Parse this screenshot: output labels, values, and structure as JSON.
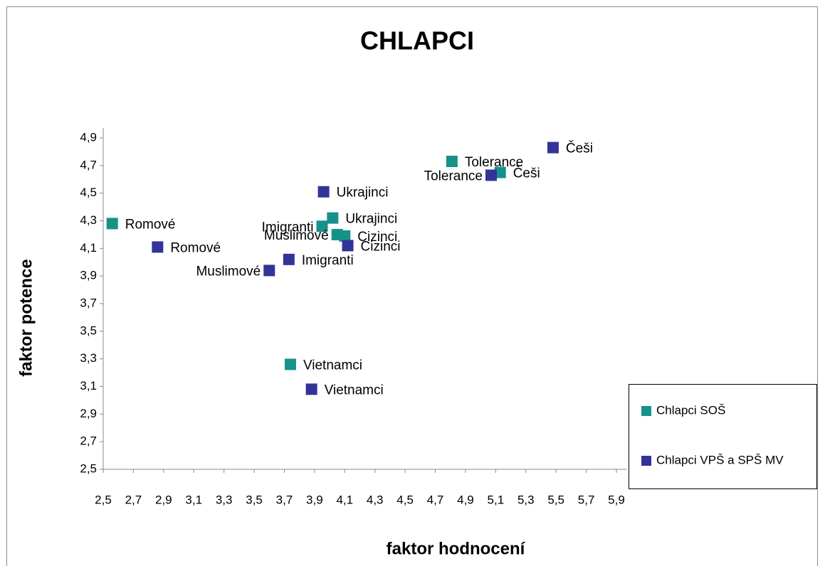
{
  "chart_data": {
    "type": "scatter",
    "title": "CHLAPCI",
    "x_label": "faktor hodnocení",
    "y_label": "faktor potence",
    "xlim": [
      2.5,
      5.9
    ],
    "xticks": [
      {
        "value": 2.5,
        "label": "2,5"
      },
      {
        "value": 2.7,
        "label": "2,7"
      },
      {
        "value": 2.9,
        "label": "2,9"
      },
      {
        "value": 3.1,
        "label": "3,1"
      },
      {
        "value": 3.3,
        "label": "3,3"
      },
      {
        "value": 3.5,
        "label": "3,5"
      },
      {
        "value": 3.7,
        "label": "3,7"
      },
      {
        "value": 3.9,
        "label": "3,9"
      },
      {
        "value": 4.1,
        "label": "4,1"
      },
      {
        "value": 4.3,
        "label": "4,3"
      },
      {
        "value": 4.5,
        "label": "4,5"
      },
      {
        "value": 4.7,
        "label": "4,7"
      },
      {
        "value": 4.9,
        "label": "4,9"
      },
      {
        "value": 5.1,
        "label": "5,1"
      },
      {
        "value": 5.3,
        "label": "5,3"
      },
      {
        "value": 5.5,
        "label": "5,5"
      },
      {
        "value": 5.7,
        "label": "5,7"
      },
      {
        "value": 5.9,
        "label": "5,9"
      }
    ],
    "ylim": [
      2.5,
      4.9
    ],
    "yticks": [
      {
        "value": 2.5,
        "label": "2,5"
      },
      {
        "value": 2.7,
        "label": "2,7"
      },
      {
        "value": 2.9,
        "label": "2,9"
      },
      {
        "value": 3.1,
        "label": "3,1"
      },
      {
        "value": 3.3,
        "label": "3,3"
      },
      {
        "value": 3.5,
        "label": "3,5"
      },
      {
        "value": 3.7,
        "label": "3,7"
      },
      {
        "value": 3.9,
        "label": "3,9"
      },
      {
        "value": 4.1,
        "label": "4,1"
      },
      {
        "value": 4.3,
        "label": "4,3"
      },
      {
        "value": 4.5,
        "label": "4,5"
      },
      {
        "value": 4.7,
        "label": "4,7"
      },
      {
        "value": 4.9,
        "label": "4,9"
      }
    ],
    "grid": false,
    "legend": "right",
    "series": [
      {
        "name": "Chlapci SOŠ",
        "color": "#17918a",
        "labels": [
          "Romové",
          "Tolerance",
          "Češi",
          "Ukrajinci",
          "Imigranti",
          "Muslimové",
          "Cizinci",
          "Vietnamci"
        ],
        "x": [
          2.56,
          4.81,
          5.13,
          4.02,
          3.95,
          4.05,
          4.1,
          3.74
        ],
        "values": [
          4.28,
          4.73,
          4.65,
          4.32,
          4.26,
          4.2,
          4.19,
          3.26
        ]
      },
      {
        "name": "Chlapci VPŠ a SPŠ MV",
        "color": "#333399",
        "labels": [
          "Češi",
          "Tolerance",
          "Ukrajinci",
          "Cizinci",
          "Romové",
          "Imigranti",
          "Muslimové",
          "Vietnamci"
        ],
        "x": [
          5.48,
          5.07,
          3.96,
          4.12,
          2.86,
          3.73,
          3.6,
          3.88
        ],
        "values": [
          4.83,
          4.63,
          4.51,
          4.12,
          4.11,
          4.02,
          3.94,
          3.08
        ]
      }
    ]
  }
}
